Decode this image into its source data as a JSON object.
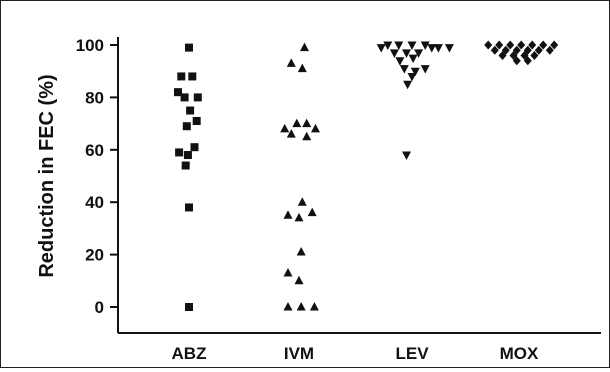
{
  "chart_data": {
    "type": "scatter",
    "ylabel": "Reduction in FEC (%)",
    "xlabel": "",
    "ylim": [
      0,
      100
    ],
    "yticks": [
      0,
      20,
      40,
      60,
      80,
      100
    ],
    "categories": [
      "ABZ",
      "IVM",
      "LEV",
      "MOX"
    ],
    "grid": false,
    "series": [
      {
        "category": "ABZ",
        "marker": "square",
        "points": [
          {
            "offset": 0.0,
            "value": 99
          },
          {
            "offset": -0.07,
            "value": 88
          },
          {
            "offset": 0.03,
            "value": 88
          },
          {
            "offset": -0.1,
            "value": 82
          },
          {
            "offset": -0.04,
            "value": 80
          },
          {
            "offset": 0.08,
            "value": 80
          },
          {
            "offset": 0.01,
            "value": 75
          },
          {
            "offset": 0.07,
            "value": 71
          },
          {
            "offset": -0.02,
            "value": 69
          },
          {
            "offset": 0.05,
            "value": 61
          },
          {
            "offset": -0.09,
            "value": 59
          },
          {
            "offset": -0.01,
            "value": 58
          },
          {
            "offset": -0.03,
            "value": 54
          },
          {
            "offset": 0.0,
            "value": 38
          },
          {
            "offset": 0.0,
            "value": 0
          }
        ]
      },
      {
        "category": "IVM",
        "marker": "triangle-up",
        "points": [
          {
            "offset": 0.05,
            "value": 99
          },
          {
            "offset": -0.07,
            "value": 93
          },
          {
            "offset": 0.03,
            "value": 91
          },
          {
            "offset": 0.07,
            "value": 70
          },
          {
            "offset": -0.02,
            "value": 70
          },
          {
            "offset": -0.13,
            "value": 68
          },
          {
            "offset": 0.15,
            "value": 68
          },
          {
            "offset": -0.07,
            "value": 66
          },
          {
            "offset": 0.07,
            "value": 65
          },
          {
            "offset": 0.03,
            "value": 40
          },
          {
            "offset": -0.1,
            "value": 35
          },
          {
            "offset": 0.0,
            "value": 34
          },
          {
            "offset": 0.12,
            "value": 36
          },
          {
            "offset": 0.02,
            "value": 21
          },
          {
            "offset": -0.1,
            "value": 13
          },
          {
            "offset": 0.0,
            "value": 10
          },
          {
            "offset": -0.1,
            "value": 0
          },
          {
            "offset": 0.02,
            "value": 0
          },
          {
            "offset": 0.14,
            "value": 0
          }
        ]
      },
      {
        "category": "LEV",
        "marker": "triangle-down",
        "points": [
          {
            "offset": -0.22,
            "value": 100
          },
          {
            "offset": -0.12,
            "value": 100
          },
          {
            "offset": 0.0,
            "value": 100
          },
          {
            "offset": 0.12,
            "value": 100
          },
          {
            "offset": 0.24,
            "value": 99
          },
          {
            "offset": -0.28,
            "value": 99
          },
          {
            "offset": 0.18,
            "value": 99
          },
          {
            "offset": 0.34,
            "value": 99
          },
          {
            "offset": -0.16,
            "value": 97
          },
          {
            "offset": -0.05,
            "value": 97
          },
          {
            "offset": 0.06,
            "value": 97
          },
          {
            "offset": -0.11,
            "value": 94
          },
          {
            "offset": 0.01,
            "value": 95
          },
          {
            "offset": -0.07,
            "value": 91
          },
          {
            "offset": 0.03,
            "value": 90
          },
          {
            "offset": 0.12,
            "value": 91
          },
          {
            "offset": 0.0,
            "value": 88
          },
          {
            "offset": -0.04,
            "value": 85
          },
          {
            "offset": -0.05,
            "value": 58
          }
        ]
      },
      {
        "category": "MOX",
        "marker": "diamond",
        "points": [
          {
            "offset": -0.28,
            "value": 100
          },
          {
            "offset": -0.18,
            "value": 100
          },
          {
            "offset": -0.08,
            "value": 100
          },
          {
            "offset": 0.02,
            "value": 100
          },
          {
            "offset": 0.12,
            "value": 100
          },
          {
            "offset": 0.22,
            "value": 100
          },
          {
            "offset": 0.32,
            "value": 100
          },
          {
            "offset": -0.22,
            "value": 98
          },
          {
            "offset": -0.12,
            "value": 98
          },
          {
            "offset": -0.02,
            "value": 98
          },
          {
            "offset": 0.08,
            "value": 98
          },
          {
            "offset": 0.18,
            "value": 98
          },
          {
            "offset": 0.28,
            "value": 98
          },
          {
            "offset": -0.15,
            "value": 96
          },
          {
            "offset": -0.05,
            "value": 96
          },
          {
            "offset": 0.05,
            "value": 96
          },
          {
            "offset": 0.14,
            "value": 96
          },
          {
            "offset": -0.02,
            "value": 94
          },
          {
            "offset": 0.08,
            "value": 94
          }
        ]
      }
    ]
  }
}
